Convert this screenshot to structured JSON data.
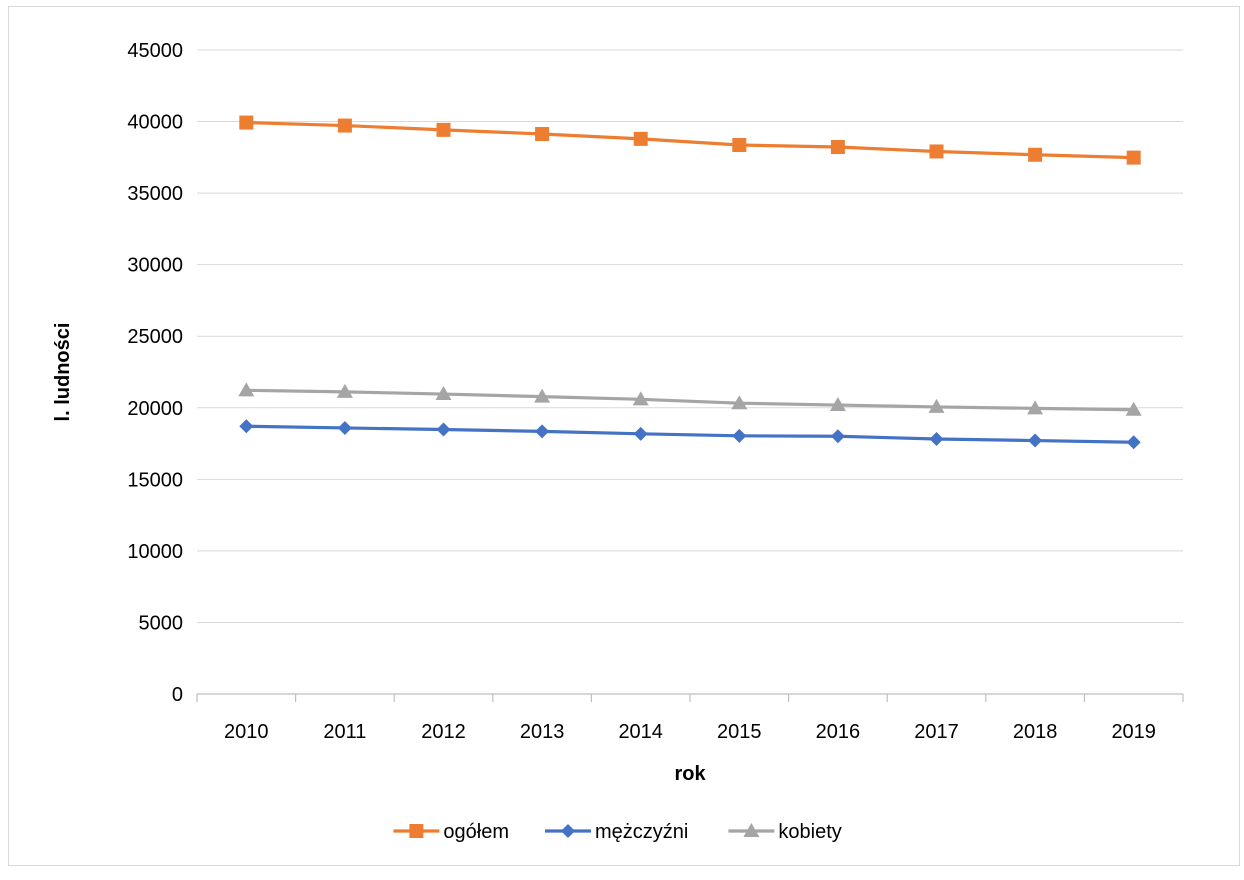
{
  "chart_data": {
    "type": "line",
    "title": "",
    "xlabel": "rok",
    "ylabel": "l. ludności",
    "categories": [
      "2010",
      "2011",
      "2012",
      "2013",
      "2014",
      "2015",
      "2016",
      "2017",
      "2018",
      "2019"
    ],
    "ylim": [
      0,
      45000
    ],
    "yticks": [
      0,
      5000,
      10000,
      15000,
      20000,
      25000,
      30000,
      35000,
      40000,
      45000
    ],
    "grid": true,
    "legend_position": "bottom",
    "series": [
      {
        "name": "ogółem",
        "color": "#ED7D31",
        "marker": "square",
        "values": [
          39930,
          39720,
          39420,
          39130,
          38790,
          38360,
          38220,
          37910,
          37680,
          37480
        ]
      },
      {
        "name": "mężczyźni",
        "color": "#4472C4",
        "marker": "diamond",
        "values": [
          18710,
          18590,
          18480,
          18350,
          18180,
          18040,
          18010,
          17820,
          17710,
          17590
        ]
      },
      {
        "name": "kobiety",
        "color": "#A5A5A5",
        "marker": "triangle",
        "values": [
          21220,
          21110,
          20960,
          20780,
          20590,
          20320,
          20190,
          20060,
          19960,
          19860
        ]
      }
    ]
  }
}
